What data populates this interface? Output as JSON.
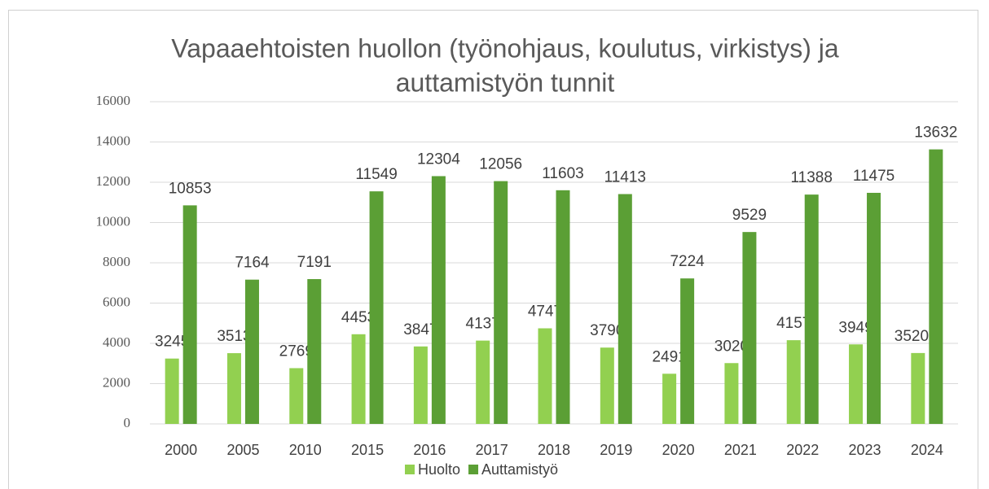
{
  "chart_data": {
    "type": "bar",
    "title": [
      "Vapaaehtoisten huollon (työnohjaus, koulutus, virkistys) ja",
      "auttamistyön tunnit"
    ],
    "categories": [
      "2000",
      "2005",
      "2010",
      "2015",
      "2016",
      "2017",
      "2018",
      "2019",
      "2020",
      "2021",
      "2022",
      "2023",
      "2024"
    ],
    "series": [
      {
        "name": "Huolto",
        "color": "#92d050",
        "values": [
          3245,
          3513,
          2769,
          4453,
          3847,
          4137,
          4747,
          3790,
          2491,
          3020,
          4157,
          3949,
          3520.3
        ],
        "value_labels": [
          "3245",
          "3513",
          "2769",
          "4453",
          "3847",
          "4137",
          "4747",
          "3790",
          "2491",
          "3020",
          "4157",
          "3949",
          "3520,3"
        ]
      },
      {
        "name": "Auttamistyö",
        "color": "#5b9f35",
        "values": [
          10853,
          7164,
          7191,
          11549,
          12304,
          12056,
          11603,
          11413,
          7224,
          9529,
          11388,
          11475,
          13632
        ]
      }
    ],
    "ylim": [
      0,
      16000
    ],
    "yticks": [
      0,
      2000,
      4000,
      6000,
      8000,
      10000,
      12000,
      14000,
      16000
    ],
    "grid": true,
    "legend": "bottom"
  }
}
